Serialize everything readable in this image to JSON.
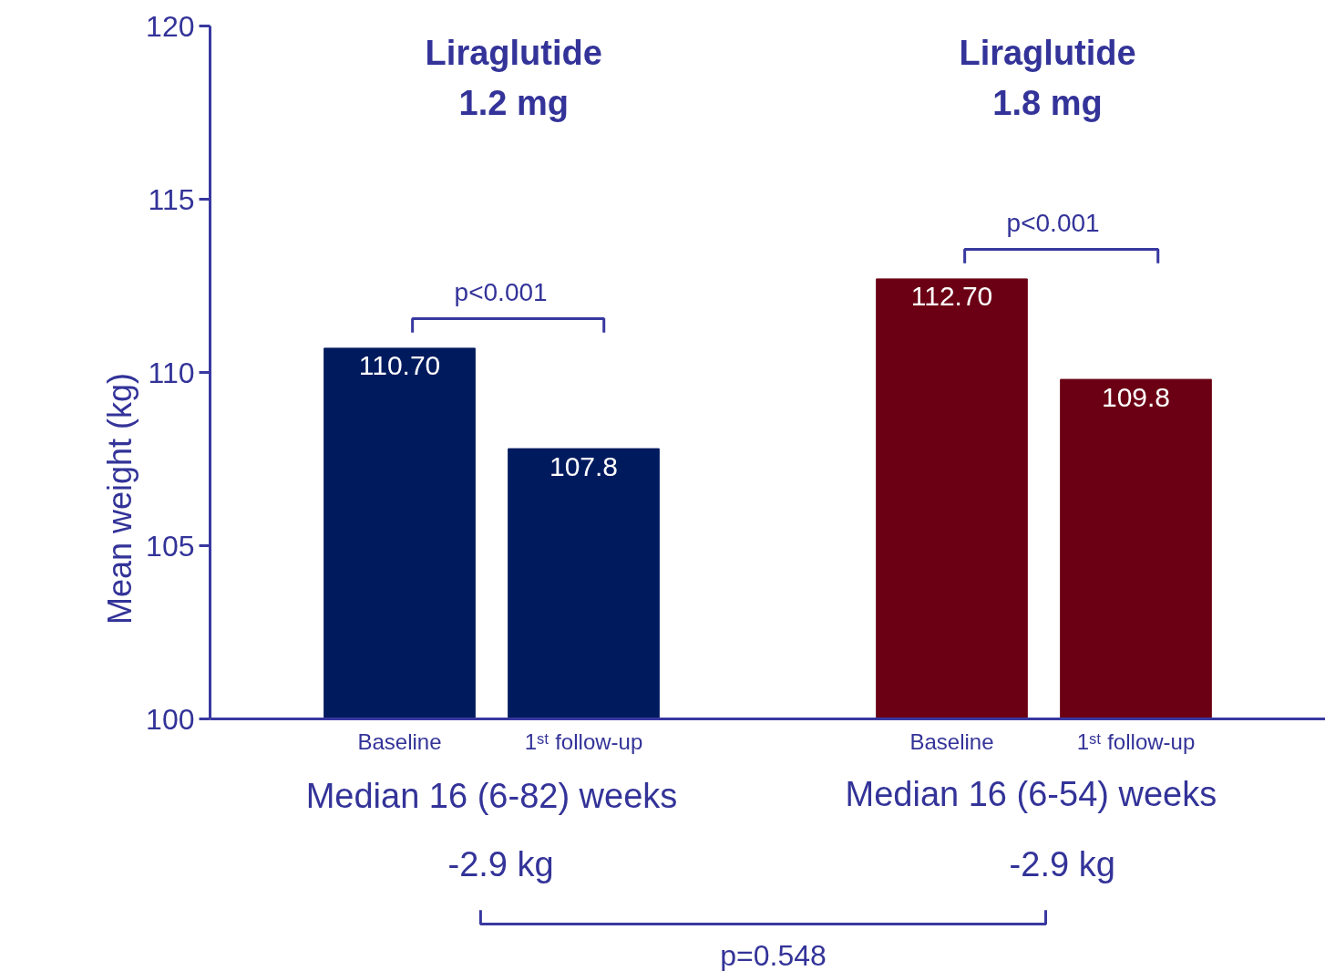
{
  "chart_data": {
    "type": "bar",
    "categories": [
      "Baseline",
      "1ˢᵗ follow-up",
      null,
      "Baseline",
      "1ˢᵗ follow-up"
    ],
    "values": [
      110.7,
      107.8,
      null,
      112.7,
      109.8
    ],
    "colors": [
      "#001a5e",
      "#001a5e",
      null,
      "#6b0014",
      "#6b0014"
    ],
    "value_labels": [
      "110.70",
      "107.8",
      null,
      "112.70",
      "109.8"
    ],
    "ylabel": "Mean weight (kg)",
    "ylim": [
      100,
      120
    ],
    "yticks": [
      100,
      105,
      110,
      115,
      120
    ],
    "grid": false,
    "annotations": [
      "Liraglutide\n1.2 mg",
      "Liraglutide\n1.8 mg",
      "p<0.001",
      "p<0.001",
      "Median 16 (6-82) weeks",
      "Median 16 (6-54) weeks",
      "-2.9 kg",
      "-2.9 kg",
      "p=0.548"
    ]
  }
}
